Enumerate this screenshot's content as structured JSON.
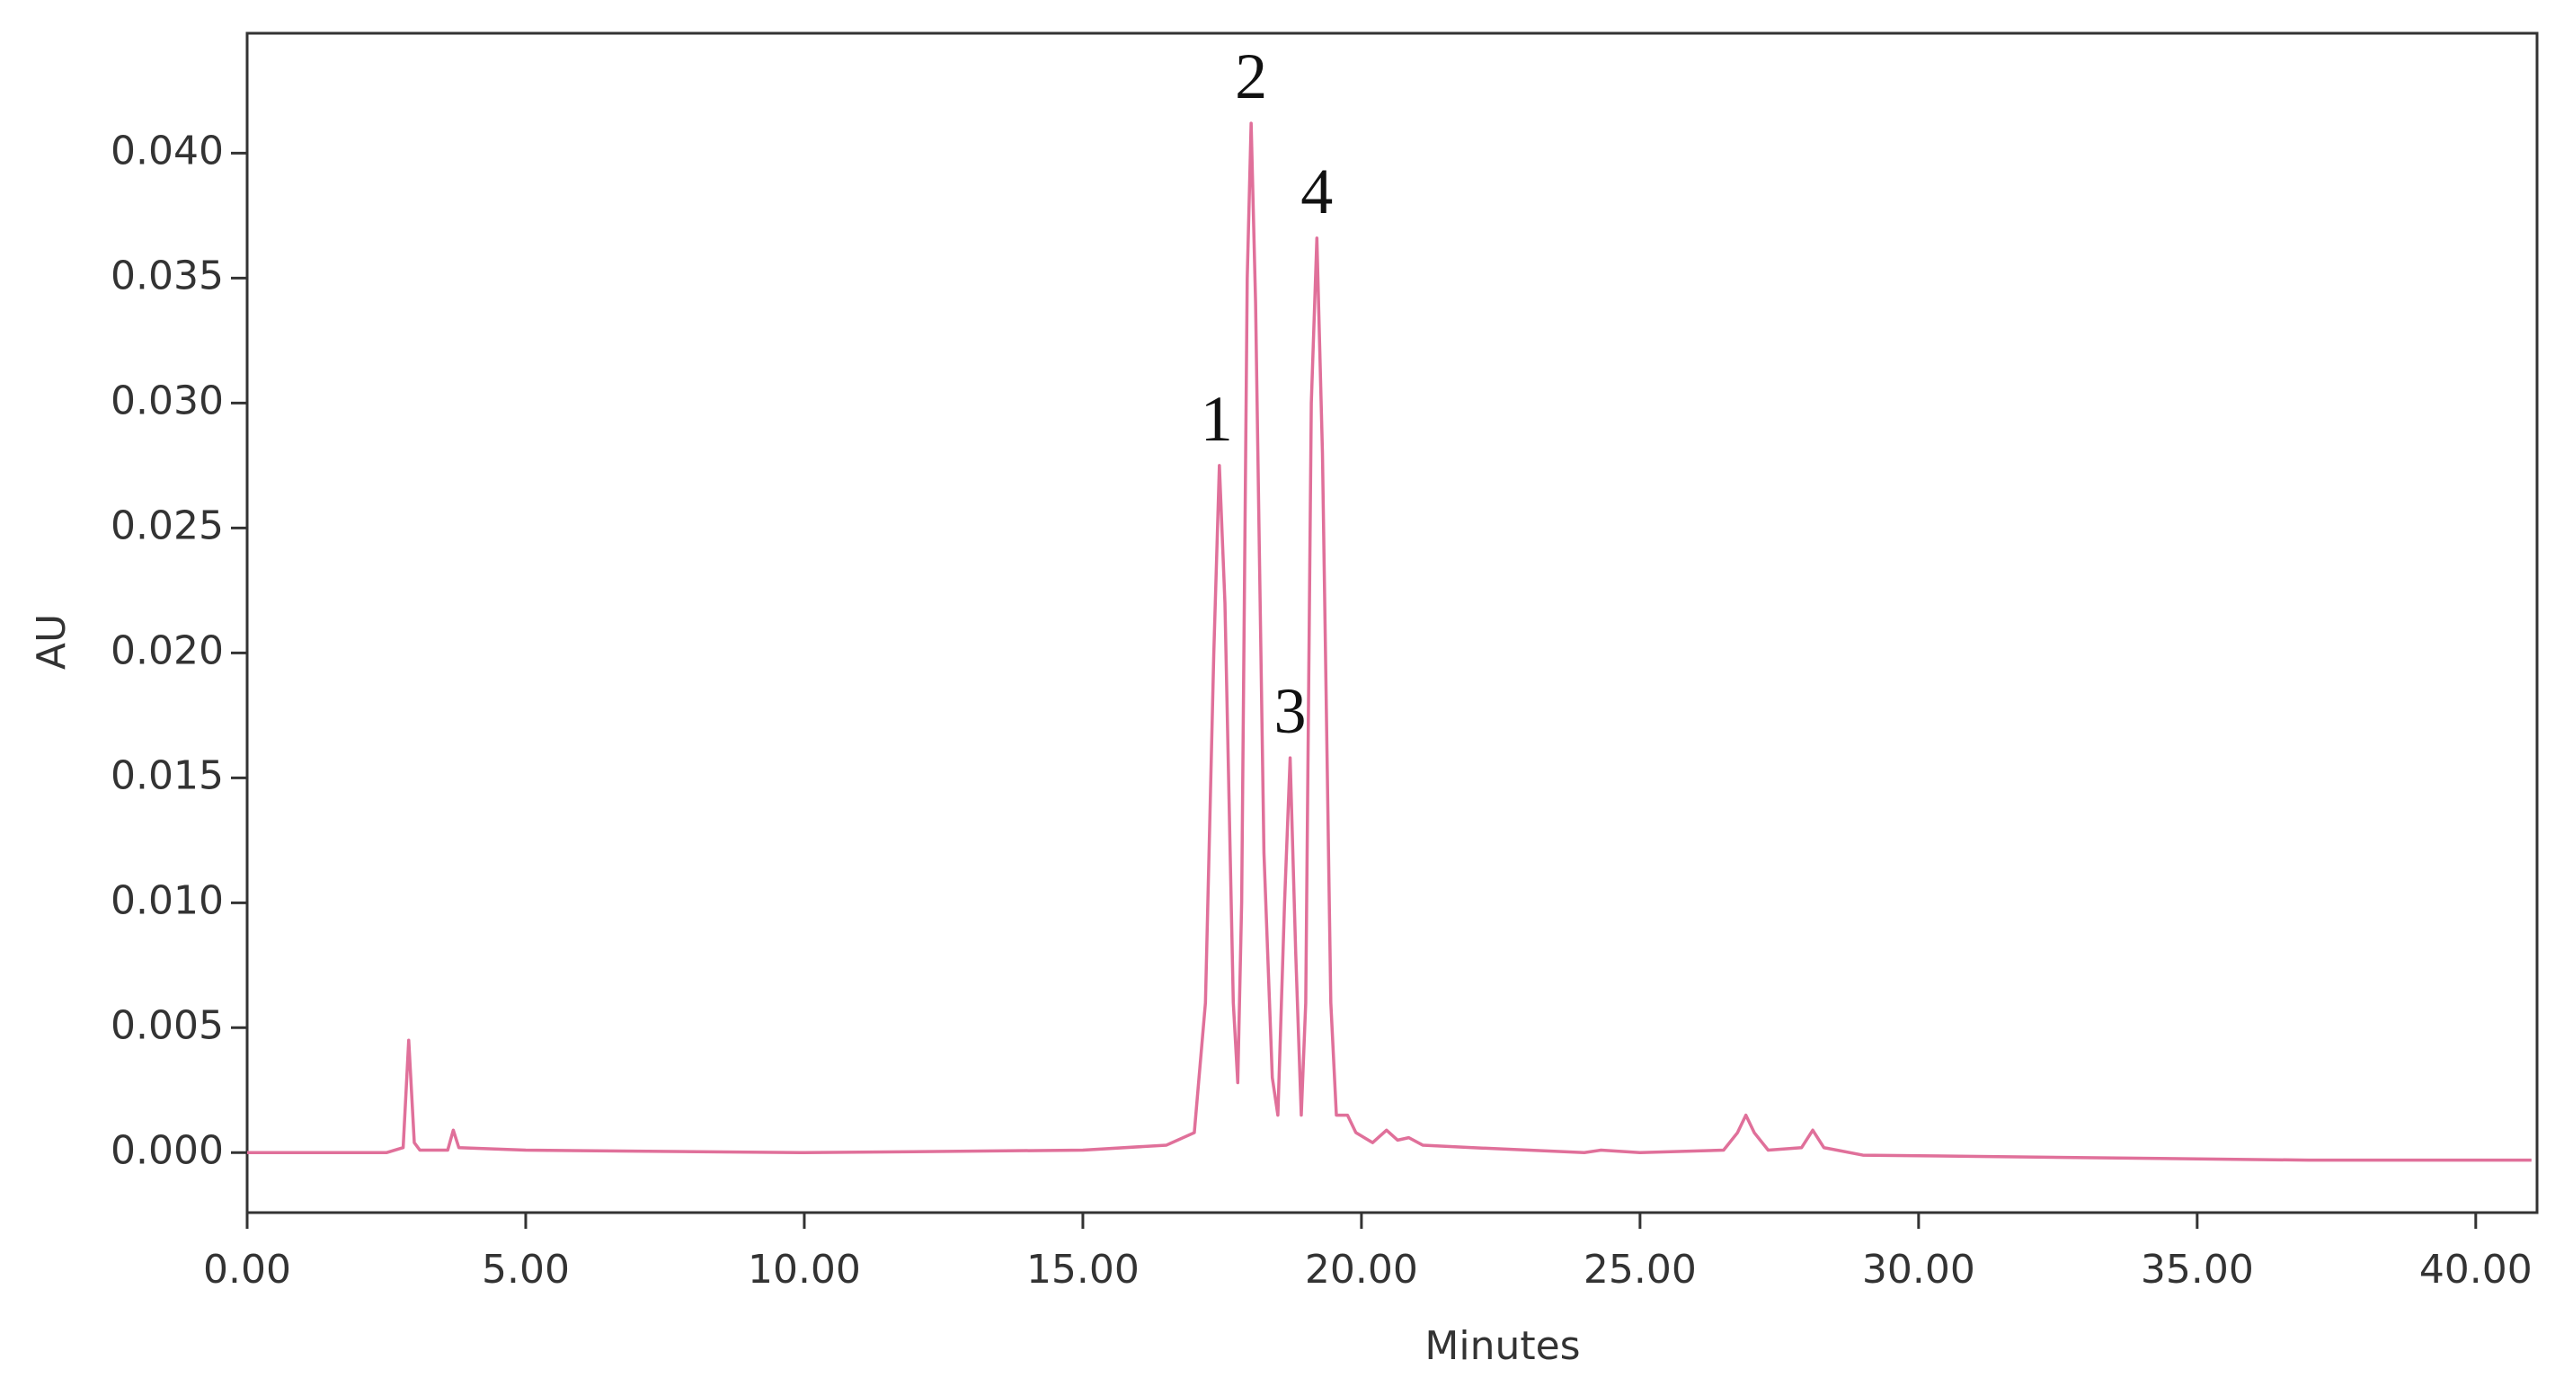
{
  "chart_data": {
    "type": "line",
    "xlabel": "Minutes",
    "ylabel": "AU",
    "xlim": [
      0,
      41.1
    ],
    "ylim": [
      -0.0024,
      0.0448
    ],
    "xticks": [
      {
        "value": 0,
        "label": "0.00"
      },
      {
        "value": 5,
        "label": "5.00"
      },
      {
        "value": 10,
        "label": "10.00"
      },
      {
        "value": 15,
        "label": "15.00"
      },
      {
        "value": 20,
        "label": "20.00"
      },
      {
        "value": 25,
        "label": "25.00"
      },
      {
        "value": 30,
        "label": "30.00"
      },
      {
        "value": 35,
        "label": "35.00"
      },
      {
        "value": 40,
        "label": "40.00"
      }
    ],
    "yticks": [
      {
        "value": 0,
        "label": "0.000"
      },
      {
        "value": 0.005,
        "label": "0.005"
      },
      {
        "value": 0.01,
        "label": "0.010"
      },
      {
        "value": 0.015,
        "label": "0.015"
      },
      {
        "value": 0.02,
        "label": "0.020"
      },
      {
        "value": 0.025,
        "label": "0.025"
      },
      {
        "value": 0.03,
        "label": "0.030"
      },
      {
        "value": 0.035,
        "label": "0.035"
      },
      {
        "value": 0.04,
        "label": "0.040"
      }
    ],
    "grid": false,
    "series": [
      {
        "color": "#e0709a",
        "x": [
          0,
          2.5,
          2.8,
          2.9,
          3.0,
          3.1,
          3.6,
          3.7,
          3.8,
          5,
          10,
          15,
          16.5,
          17.0,
          17.2,
          17.35,
          17.45,
          17.55,
          17.7,
          17.78,
          17.85,
          17.95,
          18.02,
          18.1,
          18.25,
          18.4,
          18.5,
          18.62,
          18.72,
          18.82,
          18.92,
          19.0,
          19.1,
          19.2,
          19.3,
          19.45,
          19.55,
          19.75,
          19.9,
          20.2,
          20.45,
          20.65,
          20.85,
          21.1,
          22,
          24,
          24.3,
          25,
          26.5,
          26.75,
          26.9,
          27.05,
          27.3,
          27.9,
          28.1,
          28.3,
          29,
          33,
          37,
          41
        ],
        "values": [
          0,
          0,
          0.0002,
          0.0045,
          0.0004,
          0.0001,
          0.0001,
          0.0009,
          0.0002,
          0.0001,
          0,
          0.0001,
          0.0003,
          0.0008,
          0.006,
          0.02,
          0.0275,
          0.022,
          0.006,
          0.0028,
          0.01,
          0.035,
          0.0412,
          0.034,
          0.012,
          0.003,
          0.0015,
          0.01,
          0.0158,
          0.008,
          0.0015,
          0.006,
          0.03,
          0.0366,
          0.028,
          0.006,
          0.0015,
          0.0015,
          0.0008,
          0.0004,
          0.0009,
          0.0005,
          0.0006,
          0.0003,
          0.0002,
          0,
          0.0001,
          0,
          0.0001,
          0.0008,
          0.0015,
          0.0008,
          0.0001,
          0.0002,
          0.0009,
          0.0002,
          -0.0001,
          -0.0002,
          -0.0003,
          -0.0003
        ]
      }
    ],
    "annotations": [
      {
        "text": "1",
        "x": 17.4,
        "y": 0.0275
      },
      {
        "text": "2",
        "x": 18.02,
        "y": 0.0412
      },
      {
        "text": "3",
        "x": 18.72,
        "y": 0.0158
      },
      {
        "text": "4",
        "x": 19.2,
        "y": 0.0366
      }
    ]
  }
}
